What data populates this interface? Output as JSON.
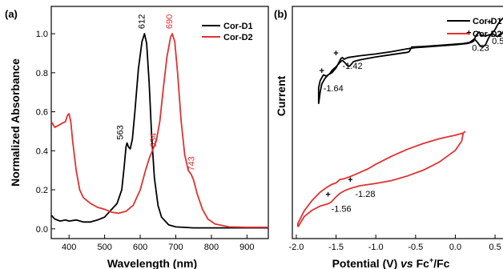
{
  "chart_data": [
    {
      "panel_label": "(a)",
      "type": "line",
      "xlabel": "Wavelength (nm)",
      "ylabel": "Normalized Absorbance",
      "xlim": [
        350,
        960
      ],
      "ylim": [
        -0.05,
        1.14
      ],
      "x_ticks": [
        400,
        500,
        600,
        700,
        800,
        900
      ],
      "y_ticks": [
        "0.0",
        "0.2",
        "0.4",
        "0.6",
        "0.8",
        "1.0"
      ],
      "legend_position": "top-right",
      "series": [
        {
          "name": "Cor-D1",
          "color": "#000000",
          "points": [
            [
              350,
              0.07
            ],
            [
              360,
              0.05
            ],
            [
              375,
              0.04
            ],
            [
              390,
              0.045
            ],
            [
              400,
              0.04
            ],
            [
              420,
              0.045
            ],
            [
              440,
              0.035
            ],
            [
              460,
              0.035
            ],
            [
              480,
              0.045
            ],
            [
              500,
              0.06
            ],
            [
              520,
              0.1
            ],
            [
              535,
              0.13
            ],
            [
              548,
              0.2
            ],
            [
              555,
              0.32
            ],
            [
              560,
              0.42
            ],
            [
              563,
              0.44
            ],
            [
              567,
              0.42
            ],
            [
              572,
              0.41
            ],
            [
              578,
              0.46
            ],
            [
              585,
              0.6
            ],
            [
              595,
              0.82
            ],
            [
              605,
              0.96
            ],
            [
              612,
              1.0
            ],
            [
              618,
              0.95
            ],
            [
              625,
              0.75
            ],
            [
              632,
              0.48
            ],
            [
              640,
              0.26
            ],
            [
              650,
              0.12
            ],
            [
              660,
              0.06
            ],
            [
              680,
              0.02
            ],
            [
              700,
              0.01
            ],
            [
              750,
              0.005
            ],
            [
              800,
              0.005
            ],
            [
              900,
              0.005
            ],
            [
              960,
              0.005
            ]
          ]
        },
        {
          "name": "Cor-D2",
          "color": "#e03232",
          "points": [
            [
              350,
              0.55
            ],
            [
              360,
              0.52
            ],
            [
              370,
              0.53
            ],
            [
              380,
              0.54
            ],
            [
              390,
              0.55
            ],
            [
              395,
              0.58
            ],
            [
              400,
              0.59
            ],
            [
              405,
              0.55
            ],
            [
              410,
              0.45
            ],
            [
              420,
              0.3
            ],
            [
              430,
              0.2
            ],
            [
              440,
              0.16
            ],
            [
              460,
              0.13
            ],
            [
              480,
              0.11
            ],
            [
              500,
              0.1
            ],
            [
              520,
              0.085
            ],
            [
              540,
              0.08
            ],
            [
              560,
              0.09
            ],
            [
              580,
              0.12
            ],
            [
              600,
              0.2
            ],
            [
              615,
              0.3
            ],
            [
              625,
              0.36
            ],
            [
              634,
              0.4
            ],
            [
              645,
              0.45
            ],
            [
              655,
              0.55
            ],
            [
              665,
              0.72
            ],
            [
              675,
              0.88
            ],
            [
              685,
              0.98
            ],
            [
              690,
              1.0
            ],
            [
              697,
              0.96
            ],
            [
              705,
              0.8
            ],
            [
              715,
              0.55
            ],
            [
              725,
              0.38
            ],
            [
              735,
              0.3
            ],
            [
              743,
              0.28
            ],
            [
              750,
              0.25
            ],
            [
              760,
              0.18
            ],
            [
              775,
              0.1
            ],
            [
              790,
              0.05
            ],
            [
              810,
              0.025
            ],
            [
              850,
              0.01
            ],
            [
              900,
              0.008
            ],
            [
              960,
              0.008
            ]
          ]
        }
      ],
      "annotations": [
        {
          "text": "612",
          "x": 612,
          "y": 1.0,
          "color": "#000000"
        },
        {
          "text": "563",
          "x": 563,
          "y": 0.44,
          "color": "#000000"
        },
        {
          "text": "690",
          "x": 690,
          "y": 1.0,
          "color": "#e03232"
        },
        {
          "text": "634",
          "x": 634,
          "y": 0.4,
          "color": "#e03232"
        },
        {
          "text": "743",
          "x": 743,
          "y": 0.28,
          "color": "#e03232"
        }
      ]
    },
    {
      "panel_label": "(b)",
      "type": "line",
      "xlabel_parts": [
        "Potential (V) ",
        "vs",
        " Fc",
        "+",
        "/Fc"
      ],
      "ylabel": "Current",
      "xlim": [
        -2.05,
        0.62
      ],
      "ylim": [
        -10.0,
        10.0
      ],
      "x_ticks": [
        "-2.0",
        "-1.5",
        "-1.0",
        "-0.5",
        "0.0",
        "0.5"
      ],
      "y_ticks_shown": false,
      "legend_position": "top-right",
      "series": [
        {
          "name": "Cor-D1",
          "color": "#000000",
          "points": [
            [
              -1.72,
              1.6
            ],
            [
              -1.7,
              2.6
            ],
            [
              -1.68,
              3.3
            ],
            [
              -1.64,
              3.8
            ],
            [
              -1.6,
              4.1
            ],
            [
              -1.55,
              4.3
            ],
            [
              -1.5,
              4.7
            ],
            [
              -1.47,
              5.1
            ],
            [
              -1.44,
              5.5
            ],
            [
              -1.42,
              5.6
            ],
            [
              -1.4,
              5.45
            ],
            [
              -1.35,
              5.6
            ],
            [
              -1.2,
              5.75
            ],
            [
              -1.0,
              5.9
            ],
            [
              -0.8,
              6.1
            ],
            [
              -0.6,
              6.35
            ],
            [
              -0.5,
              6.45
            ],
            [
              -0.4,
              6.5
            ],
            [
              -0.2,
              6.6
            ],
            [
              0.0,
              6.7
            ],
            [
              0.15,
              6.8
            ],
            [
              0.2,
              6.9
            ],
            [
              0.23,
              7.0
            ],
            [
              0.26,
              7.5
            ],
            [
              0.3,
              7.8
            ],
            [
              0.33,
              7.5
            ],
            [
              0.38,
              7.45
            ],
            [
              0.45,
              7.6
            ],
            [
              0.5,
              8.0
            ],
            [
              0.53,
              8.4
            ],
            [
              0.56,
              8.7
            ],
            [
              0.6,
              9.0
            ],
            [
              0.62,
              8.9
            ],
            [
              0.62,
              8.0
            ],
            [
              0.58,
              7.6
            ],
            [
              0.53,
              7.4
            ],
            [
              0.5,
              7.5
            ],
            [
              0.46,
              7.7
            ],
            [
              0.42,
              7.3
            ],
            [
              0.38,
              6.7
            ],
            [
              0.34,
              6.5
            ],
            [
              0.31,
              6.6
            ],
            [
              0.28,
              6.9
            ],
            [
              0.24,
              7.2
            ],
            [
              0.18,
              6.9
            ],
            [
              0.1,
              6.8
            ],
            [
              0.0,
              6.75
            ],
            [
              -0.2,
              6.65
            ],
            [
              -0.4,
              6.55
            ],
            [
              -0.55,
              6.5
            ],
            [
              -0.58,
              6.1
            ],
            [
              -0.6,
              6.05
            ],
            [
              -0.8,
              5.85
            ],
            [
              -1.0,
              5.65
            ],
            [
              -1.2,
              5.4
            ],
            [
              -1.28,
              5.25
            ],
            [
              -1.33,
              4.85
            ],
            [
              -1.36,
              4.9
            ],
            [
              -1.38,
              5.1
            ],
            [
              -1.42,
              5.35
            ],
            [
              -1.45,
              5.2
            ],
            [
              -1.5,
              4.8
            ],
            [
              -1.55,
              4.5
            ],
            [
              -1.58,
              4.2
            ],
            [
              -1.62,
              4.0
            ],
            [
              -1.66,
              4.1
            ],
            [
              -1.7,
              3.6
            ],
            [
              -1.72,
              3.0
            ],
            [
              -1.72,
              1.6
            ]
          ]
        },
        {
          "name": "Cor-D2",
          "color": "#e03232",
          "points": [
            [
              -1.98,
              -9.0
            ],
            [
              -1.9,
              -8.1
            ],
            [
              -1.8,
              -7.55
            ],
            [
              -1.7,
              -7.2
            ],
            [
              -1.6,
              -7.0
            ],
            [
              -1.56,
              -6.85
            ],
            [
              -1.5,
              -6.4
            ],
            [
              -1.45,
              -6.1
            ],
            [
              -1.4,
              -5.9
            ],
            [
              -1.35,
              -5.75
            ],
            [
              -1.28,
              -5.6
            ],
            [
              -1.2,
              -5.45
            ],
            [
              -1.0,
              -5.25
            ],
            [
              -0.8,
              -5.0
            ],
            [
              -0.6,
              -4.6
            ],
            [
              -0.4,
              -4.1
            ],
            [
              -0.2,
              -3.4
            ],
            [
              0.0,
              -2.4
            ],
            [
              0.08,
              -1.6
            ],
            [
              0.1,
              -0.9
            ],
            [
              0.12,
              -0.8
            ],
            [
              0.1,
              -0.9
            ],
            [
              0.0,
              -1.1
            ],
            [
              -0.2,
              -1.4
            ],
            [
              -0.4,
              -1.8
            ],
            [
              -0.6,
              -2.3
            ],
            [
              -0.8,
              -2.9
            ],
            [
              -1.0,
              -3.6
            ],
            [
              -1.1,
              -4.0
            ],
            [
              -1.2,
              -4.3
            ],
            [
              -1.3,
              -4.6
            ],
            [
              -1.4,
              -4.85
            ],
            [
              -1.45,
              -4.9
            ],
            [
              -1.5,
              -5.2
            ],
            [
              -1.56,
              -5.35
            ],
            [
              -1.62,
              -5.6
            ],
            [
              -1.7,
              -6.0
            ],
            [
              -1.8,
              -6.7
            ],
            [
              -1.9,
              -7.6
            ],
            [
              -1.98,
              -8.7
            ],
            [
              -1.98,
              -9.0
            ]
          ]
        }
      ],
      "annotations": [
        {
          "text": "-1.42",
          "x": -1.42,
          "y": 5.6,
          "color": "#000000"
        },
        {
          "text": "-1.64",
          "x": -1.64,
          "y": 3.8,
          "color": "#000000"
        },
        {
          "text": "0.23",
          "x": 0.23,
          "y": 7.0,
          "color": "#000000"
        },
        {
          "text": "0.5",
          "x": 0.5,
          "y": 8.0,
          "color": "#000000"
        },
        {
          "text": "-1.28",
          "x": -1.28,
          "y": -5.6,
          "color": "#000000"
        },
        {
          "text": "-1.56",
          "x": -1.56,
          "y": -6.85,
          "color": "#000000"
        }
      ]
    }
  ]
}
